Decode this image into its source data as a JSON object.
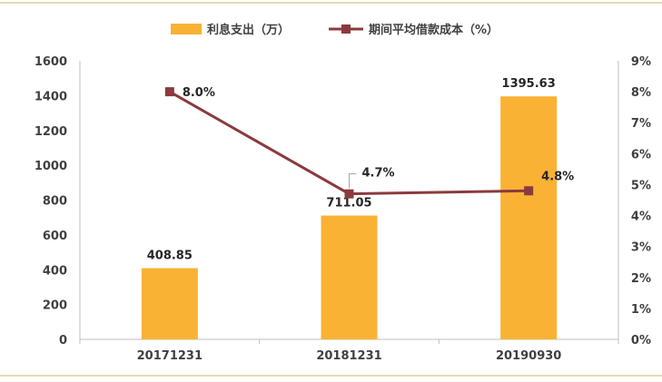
{
  "chart_data": {
    "type": "bar+line",
    "categories": [
      "20171231",
      "20181231",
      "20190930"
    ],
    "series": [
      {
        "name": "利息支出（万）",
        "type": "bar",
        "axis": "left",
        "values": [
          408.85,
          711.05,
          1395.63
        ],
        "labels": [
          "408.85",
          "711.05",
          "1395.63"
        ]
      },
      {
        "name": "期间平均借款成本（%）",
        "type": "line",
        "axis": "right",
        "values": [
          8.0,
          4.7,
          4.8
        ],
        "labels": [
          "8.0%",
          "4.7%",
          "4.8%"
        ]
      }
    ],
    "y_left": {
      "min": 0,
      "max": 1600,
      "ticks": [
        "0",
        "200",
        "400",
        "600",
        "800",
        "1000",
        "1200",
        "1400",
        "1600"
      ]
    },
    "y_right": {
      "min": 0,
      "max": 9,
      "ticks": [
        "0%",
        "1%",
        "2%",
        "3%",
        "4%",
        "5%",
        "6%",
        "7%",
        "8%",
        "9%"
      ]
    },
    "legend": "top",
    "grid": false,
    "colors": {
      "bar": "#F9B233",
      "line": "#8B3A3E",
      "frame": "#C9B66B",
      "axis": "#BFBFBF"
    }
  }
}
